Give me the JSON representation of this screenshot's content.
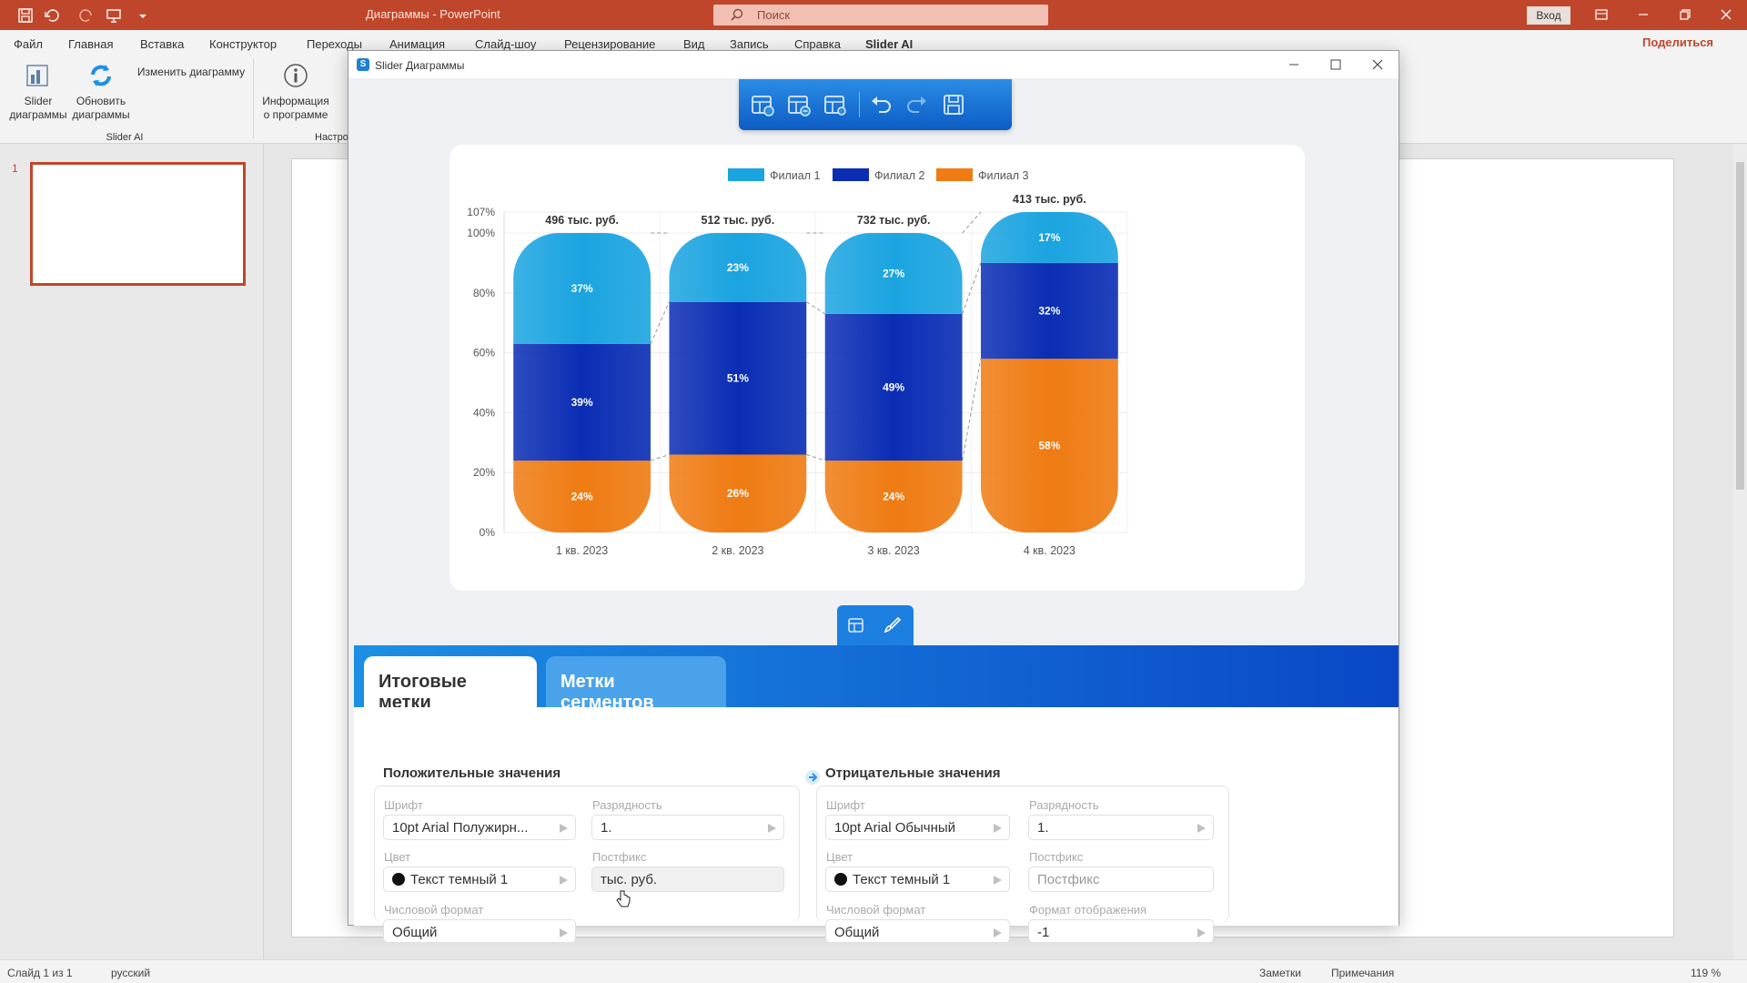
{
  "app": {
    "title": "Диаграммы  -  PowerPoint",
    "search_placeholder": "Поиск",
    "sign_in": "Вход",
    "share": "Поделиться"
  },
  "menu": [
    "Файл",
    "Главная",
    "Вставка",
    "Конструктор",
    "Переходы",
    "Анимация",
    "Слайд-шоу",
    "Рецензирование",
    "Вид",
    "Запись",
    "Справка",
    "Slider AI"
  ],
  "ribbon": {
    "slider_charts": "Slider\nдиаграммы",
    "refresh_charts": "Обновить\nдиаграммы",
    "edit_chart": "Изменить диаграмму",
    "about": "Информация\nо программе",
    "group_slider_ai": "Slider AI",
    "group_settings": "Настро"
  },
  "slides_pane": {
    "slide_number": "1"
  },
  "status": {
    "slide": "Слайд 1 из 1",
    "language": "русский",
    "notes": "Заметки",
    "comments": "Примечания",
    "zoom": "119 %"
  },
  "dialog": {
    "title": "Slider Диаграммы",
    "logo_letter": "S"
  },
  "chart_data": {
    "type": "bar",
    "stacked": true,
    "percent": true,
    "categories": [
      "1 кв. 2023",
      "2 кв. 2023",
      "3 кв. 2023",
      "4 кв. 2023"
    ],
    "series": [
      {
        "name": "Филиал 1",
        "values": [
          37,
          23,
          27,
          17
        ],
        "color": "#1aa4e0"
      },
      {
        "name": "Филиал 2",
        "values": [
          39,
          51,
          49,
          32
        ],
        "color": "#0a2db4"
      },
      {
        "name": "Филиал 3",
        "values": [
          24,
          26,
          24,
          58
        ],
        "color": "#ef7b12"
      }
    ],
    "totals": [
      "496 тыс. руб.",
      "512 тыс. руб.",
      "732 тыс. руб.",
      "413 тыс. руб."
    ],
    "y_ticks": [
      "0%",
      "20%",
      "40%",
      "60%",
      "80%",
      "100%",
      "107%"
    ],
    "ylim": [
      0,
      107
    ],
    "legend": "top-center",
    "grid": true
  },
  "tabs": {
    "total_labels": "Итоговые метки",
    "segment_labels": "Метки сегментов"
  },
  "positive": {
    "title": "Положительные значения",
    "font_label": "Шрифт",
    "font_value": "10pt Arial Полужирн...",
    "digits_label": "Разрядность",
    "digits_value": "1.",
    "color_label": "Цвет",
    "color_value": "Текст темный 1",
    "postfix_label": "Постфикс",
    "postfix_value": "тыс. руб.",
    "numfmt_label": "Числовой формат",
    "numfmt_value": "Общий"
  },
  "negative": {
    "title": "Отрицательные значения",
    "font_label": "Шрифт",
    "font_value": "10pt Arial Обычный",
    "digits_label": "Разрядность",
    "digits_value": "1.",
    "color_label": "Цвет",
    "color_value": "Текст темный 1",
    "postfix_label": "Постфикс",
    "postfix_placeholder": "Постфикс",
    "numfmt_label": "Числовой формат",
    "numfmt_value": "Общий",
    "display_label": "Формат отображения",
    "display_value": "-1"
  }
}
